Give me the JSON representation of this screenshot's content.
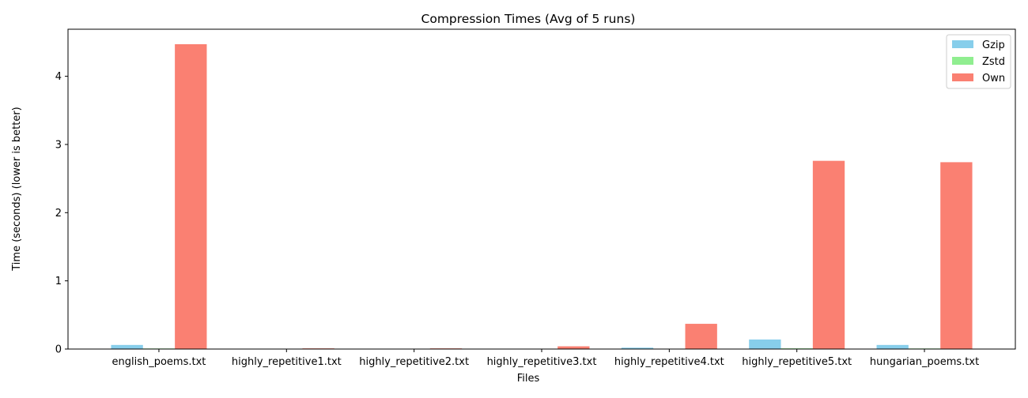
{
  "chart_data": {
    "type": "bar",
    "title": "Compression Times  (Avg of 5 runs)",
    "xlabel": "Files",
    "ylabel": "Time (seconds) (lower is better)",
    "categories": [
      "english_poems.txt",
      "highly_repetitive1.txt",
      "highly_repetitive2.txt",
      "highly_repetitive3.txt",
      "highly_repetitive4.txt",
      "highly_repetitive5.txt",
      "hungarian_poems.txt"
    ],
    "series": [
      {
        "name": "Gzip",
        "color": "#87ceeb",
        "values": [
          0.06,
          0.001,
          0.001,
          0.005,
          0.02,
          0.14,
          0.06
        ]
      },
      {
        "name": "Zstd",
        "color": "#90ee90",
        "values": [
          0.008,
          0.001,
          0.001,
          0.002,
          0.004,
          0.01,
          0.008
        ]
      },
      {
        "name": "Own",
        "color": "#fa8072",
        "values": [
          4.47,
          0.01,
          0.01,
          0.04,
          0.37,
          2.76,
          2.74
        ]
      }
    ],
    "ylim": [
      0,
      4.69
    ],
    "yticks": [
      0,
      1,
      2,
      3,
      4
    ],
    "grid": false,
    "legend_position": "top-right"
  }
}
